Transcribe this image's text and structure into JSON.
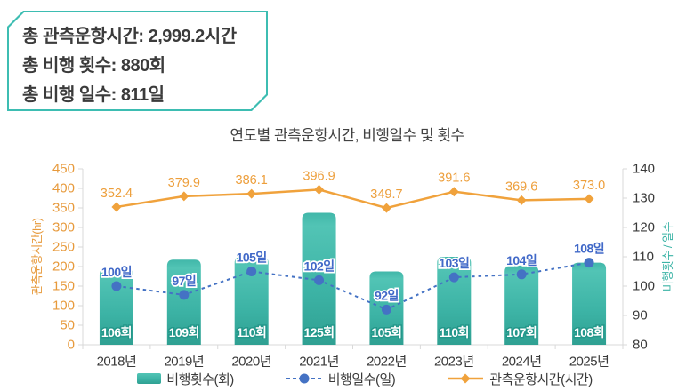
{
  "summary_box": {
    "lines": [
      "총 관측운항시간: 2,999.2시간",
      "총 비행 횟수: 880회",
      "총 비행 일수: 811일"
    ],
    "border_color": "#3DBDB2"
  },
  "chart_data": {
    "type": "combo-bar-line",
    "title": "연도별 관측운항시간, 비행일수 및 횟수",
    "categories": [
      "2018년",
      "2019년",
      "2020년",
      "2021년",
      "2022년",
      "2023년",
      "2024년",
      "2025년"
    ],
    "series": [
      {
        "name": "비행횟수(회)",
        "type": "bar",
        "axis": "right",
        "color": "#3CB4A6",
        "values": [
          106,
          109,
          110,
          125,
          105,
          110,
          107,
          108
        ],
        "labels": [
          "106회",
          "109회",
          "110회",
          "125회",
          "105회",
          "110회",
          "107회",
          "108회"
        ]
      },
      {
        "name": "비행일수(일)",
        "type": "line",
        "style": "dashed-dot",
        "axis": "right",
        "color": "#4472C4",
        "values": [
          100,
          97,
          105,
          102,
          92,
          103,
          104,
          108
        ],
        "labels": [
          "100일",
          "97일",
          "105일",
          "102일",
          "92일",
          "103일",
          "104일",
          "108일"
        ]
      },
      {
        "name": "관측운항시간(시간)",
        "type": "line",
        "style": "solid-diamond",
        "axis": "left",
        "color": "#F0A23C",
        "values": [
          352.4,
          379.9,
          386.1,
          396.9,
          349.7,
          391.6,
          369.6,
          373.0
        ],
        "labels": [
          "352.4",
          "379.9",
          "386.1",
          "396.9",
          "349.7",
          "391.6",
          "369.6",
          "373.0"
        ]
      }
    ],
    "left_axis": {
      "title": "관측운항시간(hr)",
      "min": 0,
      "max": 450,
      "step": 50,
      "color": "#E79A3C"
    },
    "right_axis": {
      "title": "비행횟수 / 일수",
      "min": 80,
      "max": 140,
      "step": 10,
      "color": "#3CB4A6"
    },
    "tick_label_color_right": "#3a3a3a",
    "category_label_color": "#3a3a3a",
    "axis_line_color": "#d9d9d9",
    "grid": false,
    "legend_position": "bottom"
  }
}
